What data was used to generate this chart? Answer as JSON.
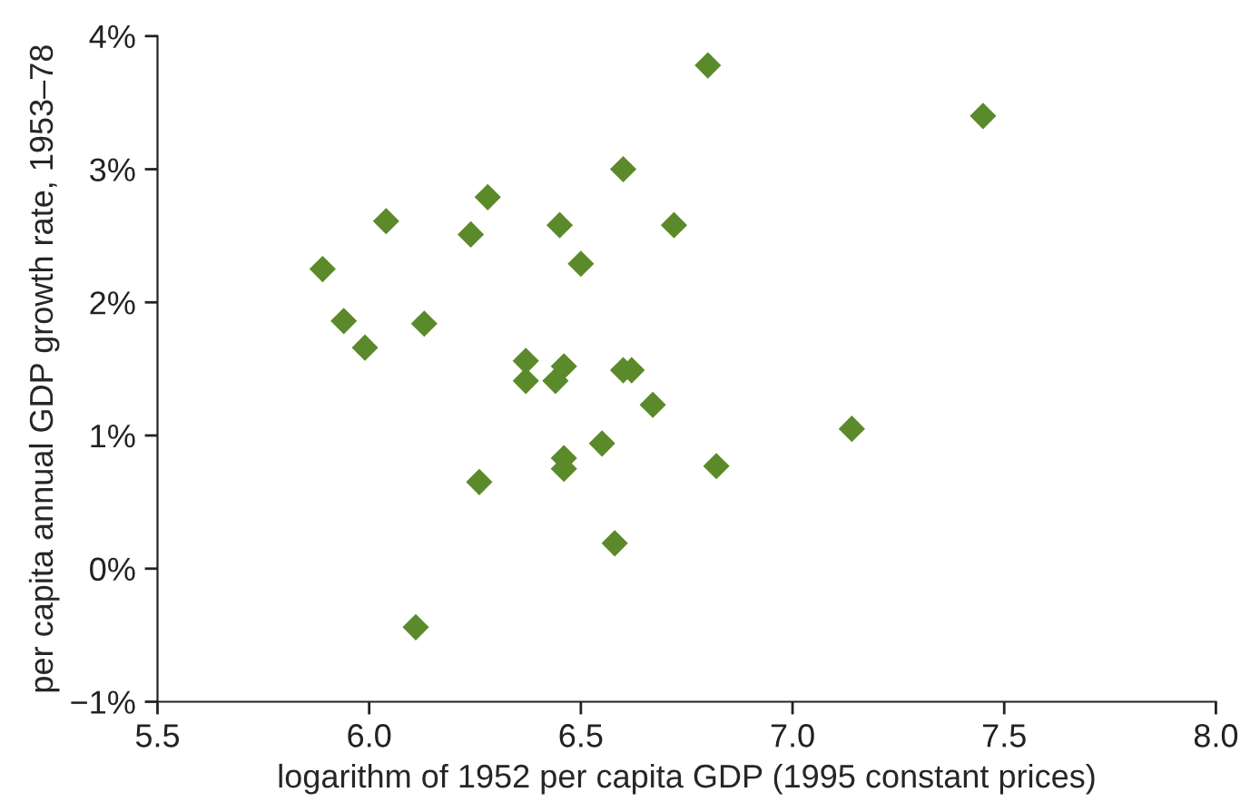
{
  "chart_data": {
    "type": "scatter",
    "xlabel": "logarithm of 1952 per capita GDP (1995 constant prices)",
    "ylabel": "per capita annual GDP growth rate, 1953–78",
    "x": [
      5.89,
      5.94,
      5.99,
      6.04,
      6.13,
      6.11,
      6.24,
      6.26,
      6.28,
      6.37,
      6.37,
      6.44,
      6.46,
      6.45,
      6.46,
      6.46,
      6.5,
      6.55,
      6.58,
      6.6,
      6.6,
      6.62,
      6.67,
      6.72,
      6.8,
      6.82,
      7.14,
      7.45
    ],
    "series": [
      {
        "color": "#5b8a2a",
        "values": [
          2.25,
          1.86,
          1.66,
          2.61,
          1.84,
          -0.44,
          2.51,
          0.65,
          2.79,
          1.56,
          1.41,
          1.41,
          1.52,
          2.58,
          0.83,
          0.75,
          2.29,
          0.94,
          0.19,
          3.0,
          1.49,
          1.49,
          1.23,
          2.58,
          3.78,
          0.77,
          1.05,
          3.4
        ]
      }
    ],
    "xlim": [
      5.5,
      8.0
    ],
    "xticks": [
      {
        "value": 5.5,
        "label": "5.5"
      },
      {
        "value": 6.0,
        "label": "6.0"
      },
      {
        "value": 6.5,
        "label": "6.5"
      },
      {
        "value": 7.0,
        "label": "7.0"
      },
      {
        "value": 7.5,
        "label": "7.5"
      },
      {
        "value": 8.0,
        "label": "8.0"
      }
    ],
    "ylim": [
      -1,
      4
    ],
    "yticks": [
      {
        "value": -1,
        "label": "−1%"
      },
      {
        "value": 0,
        "label": "0%"
      },
      {
        "value": 1,
        "label": "1%"
      },
      {
        "value": 2,
        "label": "2%"
      },
      {
        "value": 3,
        "label": "3%"
      },
      {
        "value": 4,
        "label": "4%"
      }
    ],
    "marker": "diamond"
  }
}
